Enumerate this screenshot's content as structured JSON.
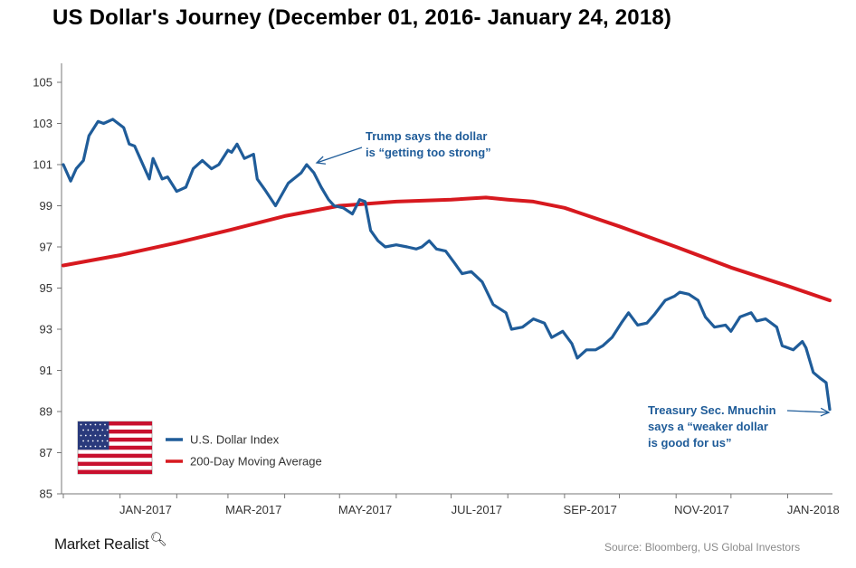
{
  "title": "US Dollar's Journey (December 01, 2016- January 24, 2018)",
  "brand": {
    "name": "Market Realist",
    "icon": "magnifier-icon"
  },
  "source": "Source:  Bloomberg, US Global Investors",
  "annotations": {
    "trump": [
      "Trump says the dollar",
      "is “getting too strong”"
    ],
    "mnuchin": [
      "Treasury Sec. Mnuchin",
      "says a “weaker dollar",
      "is good for us”"
    ]
  },
  "legend": {
    "placement": "bottom-left",
    "flag": "us-flag-icon",
    "items": [
      "U.S. Dollar Index",
      "200-Day Moving Average"
    ]
  },
  "chart_data": {
    "type": "line",
    "title": "US Dollar's Journey (December 01, 2016- January 24, 2018)",
    "xlabel": "",
    "ylabel": "",
    "ylim": [
      85,
      105
    ],
    "grid": false,
    "y_ticks": [
      105,
      103,
      101,
      99,
      97,
      95,
      93,
      91,
      89,
      87,
      85
    ],
    "x_ticks": [
      "JAN-2017",
      "MAR-2017",
      "MAY-2017",
      "JUL-2017",
      "SEP-2017",
      "NOV-2017",
      "JAN-2018"
    ],
    "colors": {
      "index": "#1f5c99",
      "ma": "#d7191f"
    },
    "series": [
      {
        "name": "U.S. Dollar Index",
        "points": [
          [
            "2016-12-01",
            101.0
          ],
          [
            "2016-12-05",
            100.2
          ],
          [
            "2016-12-08",
            100.8
          ],
          [
            "2016-12-12",
            101.2
          ],
          [
            "2016-12-15",
            102.4
          ],
          [
            "2016-12-20",
            103.1
          ],
          [
            "2016-12-23",
            103.0
          ],
          [
            "2016-12-28",
            103.2
          ],
          [
            "2017-01-03",
            102.8
          ],
          [
            "2017-01-06",
            102.0
          ],
          [
            "2017-01-09",
            101.9
          ],
          [
            "2017-01-12",
            101.3
          ],
          [
            "2017-01-17",
            100.3
          ],
          [
            "2017-01-19",
            101.3
          ],
          [
            "2017-01-24",
            100.3
          ],
          [
            "2017-01-27",
            100.4
          ],
          [
            "2017-02-01",
            99.7
          ],
          [
            "2017-02-06",
            99.9
          ],
          [
            "2017-02-10",
            100.8
          ],
          [
            "2017-02-15",
            101.2
          ],
          [
            "2017-02-20",
            100.8
          ],
          [
            "2017-02-24",
            101.0
          ],
          [
            "2017-03-01",
            101.7
          ],
          [
            "2017-03-03",
            101.6
          ],
          [
            "2017-03-06",
            102.0
          ],
          [
            "2017-03-10",
            101.3
          ],
          [
            "2017-03-15",
            101.5
          ],
          [
            "2017-03-17",
            100.3
          ],
          [
            "2017-03-21",
            99.8
          ],
          [
            "2017-03-27",
            99.0
          ],
          [
            "2017-04-03",
            100.1
          ],
          [
            "2017-04-10",
            100.6
          ],
          [
            "2017-04-13",
            101.0
          ],
          [
            "2017-04-17",
            100.6
          ],
          [
            "2017-04-21",
            99.9
          ],
          [
            "2017-04-25",
            99.3
          ],
          [
            "2017-04-28",
            99.0
          ],
          [
            "2017-05-03",
            98.9
          ],
          [
            "2017-05-08",
            98.6
          ],
          [
            "2017-05-12",
            99.3
          ],
          [
            "2017-05-15",
            99.2
          ],
          [
            "2017-05-18",
            97.8
          ],
          [
            "2017-05-22",
            97.3
          ],
          [
            "2017-05-26",
            97.0
          ],
          [
            "2017-06-01",
            97.1
          ],
          [
            "2017-06-07",
            97.0
          ],
          [
            "2017-06-12",
            96.9
          ],
          [
            "2017-06-15",
            97.0
          ],
          [
            "2017-06-19",
            97.3
          ],
          [
            "2017-06-23",
            96.9
          ],
          [
            "2017-06-28",
            96.8
          ],
          [
            "2017-07-03",
            96.2
          ],
          [
            "2017-07-07",
            95.7
          ],
          [
            "2017-07-12",
            95.8
          ],
          [
            "2017-07-18",
            95.3
          ],
          [
            "2017-07-24",
            94.2
          ],
          [
            "2017-07-31",
            93.8
          ],
          [
            "2017-08-03",
            93.0
          ],
          [
            "2017-08-09",
            93.1
          ],
          [
            "2017-08-15",
            93.5
          ],
          [
            "2017-08-21",
            93.3
          ],
          [
            "2017-08-25",
            92.6
          ],
          [
            "2017-08-31",
            92.9
          ],
          [
            "2017-09-05",
            92.3
          ],
          [
            "2017-09-08",
            91.6
          ],
          [
            "2017-09-13",
            92.0
          ],
          [
            "2017-09-18",
            92.0
          ],
          [
            "2017-09-22",
            92.2
          ],
          [
            "2017-09-27",
            92.6
          ],
          [
            "2017-10-02",
            93.3
          ],
          [
            "2017-10-06",
            93.8
          ],
          [
            "2017-10-11",
            93.2
          ],
          [
            "2017-10-16",
            93.3
          ],
          [
            "2017-10-20",
            93.7
          ],
          [
            "2017-10-26",
            94.4
          ],
          [
            "2017-10-31",
            94.6
          ],
          [
            "2017-11-03",
            94.8
          ],
          [
            "2017-11-08",
            94.7
          ],
          [
            "2017-11-13",
            94.4
          ],
          [
            "2017-11-17",
            93.6
          ],
          [
            "2017-11-22",
            93.1
          ],
          [
            "2017-11-28",
            93.2
          ],
          [
            "2017-12-01",
            92.9
          ],
          [
            "2017-12-06",
            93.6
          ],
          [
            "2017-12-12",
            93.8
          ],
          [
            "2017-12-15",
            93.4
          ],
          [
            "2017-12-20",
            93.5
          ],
          [
            "2017-12-26",
            93.1
          ],
          [
            "2017-12-29",
            92.2
          ],
          [
            "2018-01-04",
            92.0
          ],
          [
            "2018-01-09",
            92.4
          ],
          [
            "2018-01-11",
            92.1
          ],
          [
            "2018-01-15",
            90.9
          ],
          [
            "2018-01-19",
            90.6
          ],
          [
            "2018-01-22",
            90.4
          ],
          [
            "2018-01-24",
            89.1
          ]
        ]
      },
      {
        "name": "200-Day Moving Average",
        "points": [
          [
            "2016-12-01",
            96.1
          ],
          [
            "2017-01-01",
            96.6
          ],
          [
            "2017-02-01",
            97.2
          ],
          [
            "2017-03-01",
            97.8
          ],
          [
            "2017-04-01",
            98.5
          ],
          [
            "2017-05-01",
            99.0
          ],
          [
            "2017-06-01",
            99.2
          ],
          [
            "2017-07-01",
            99.3
          ],
          [
            "2017-07-20",
            99.4
          ],
          [
            "2017-08-01",
            99.3
          ],
          [
            "2017-08-15",
            99.2
          ],
          [
            "2017-09-01",
            98.9
          ],
          [
            "2017-10-01",
            98.0
          ],
          [
            "2017-11-01",
            97.0
          ],
          [
            "2017-12-01",
            96.0
          ],
          [
            "2018-01-01",
            95.1
          ],
          [
            "2018-01-24",
            94.4
          ]
        ]
      }
    ]
  }
}
